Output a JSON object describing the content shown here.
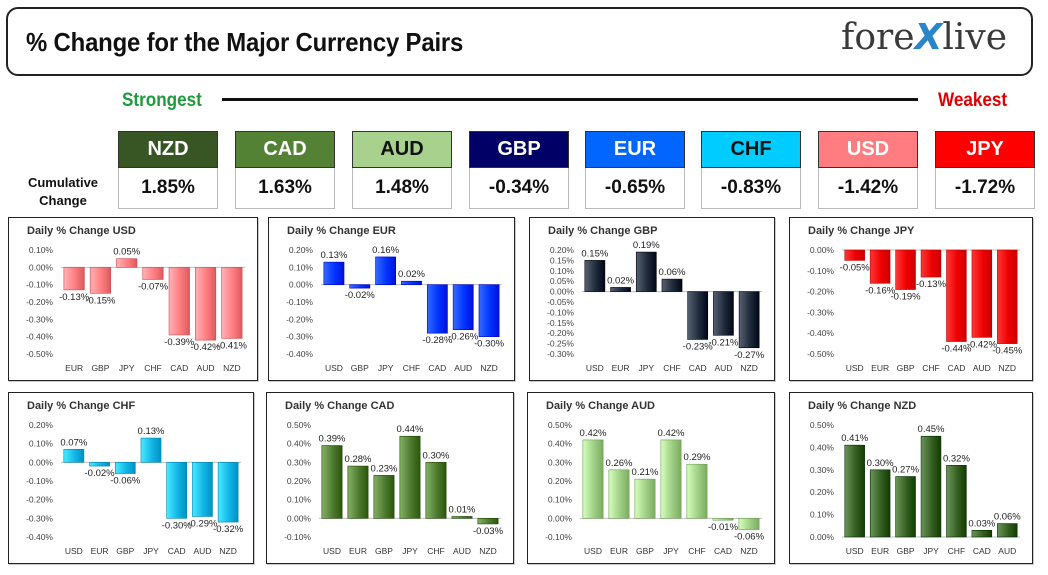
{
  "header": {
    "title": "% Change for the Major Currency Pairs",
    "logo_left": "fore",
    "logo_x": "X",
    "logo_right": "live"
  },
  "ranking": {
    "strongest_label": "Strongest",
    "weakest_label": "Weakest",
    "cumulative_label_line1": "Cumulative",
    "cumulative_label_line2": "Change",
    "currencies": [
      {
        "name": "NZD",
        "value": "1.85%",
        "bg": "#375623",
        "fg": "#ffffff"
      },
      {
        "name": "CAD",
        "value": "1.63%",
        "bg": "#548235",
        "fg": "#ffffff"
      },
      {
        "name": "AUD",
        "value": "1.48%",
        "bg": "#a9d18e",
        "fg": "#111111"
      },
      {
        "name": "GBP",
        "value": "-0.34%",
        "bg": "#000066",
        "fg": "#ffffff"
      },
      {
        "name": "EUR",
        "value": "-0.65%",
        "bg": "#0066ff",
        "fg": "#ffffff"
      },
      {
        "name": "CHF",
        "value": "-0.83%",
        "bg": "#00ccff",
        "fg": "#111111"
      },
      {
        "name": "USD",
        "value": "-1.42%",
        "bg": "#ff7c80",
        "fg": "#ffffff"
      },
      {
        "name": "JPY",
        "value": "-1.72%",
        "bg": "#ff0000",
        "fg": "#ffffff"
      }
    ]
  },
  "chart_data": [
    {
      "type": "bar",
      "title": "Daily % Change USD",
      "categories": [
        "EUR",
        "GBP",
        "JPY",
        "CHF",
        "CAD",
        "AUD",
        "NZD"
      ],
      "values": [
        -0.13,
        -0.15,
        0.05,
        -0.07,
        -0.39,
        -0.42,
        -0.41
      ],
      "value_labels": [
        "-0.13%",
        "-0.15%",
        "0.05%",
        "-0.07%",
        "-0.39%",
        "-0.42%",
        "-0.41%"
      ],
      "ylim": [
        -0.5,
        0.1
      ],
      "yticks": [
        0.1,
        0.0,
        -0.1,
        -0.2,
        -0.3,
        -0.4,
        -0.5
      ],
      "ytick_labels": [
        "0.10%",
        "0.00%",
        "-0.10%",
        "-0.20%",
        "-0.30%",
        "-0.40%",
        "-0.50%"
      ],
      "color": "#ff7c80"
    },
    {
      "type": "bar",
      "title": "Daily % Change EUR",
      "categories": [
        "USD",
        "GBP",
        "JPY",
        "CHF",
        "CAD",
        "AUD",
        "NZD"
      ],
      "values": [
        0.13,
        -0.02,
        0.16,
        0.02,
        -0.28,
        -0.26,
        -0.3
      ],
      "value_labels": [
        "0.13%",
        "-0.02%",
        "0.16%",
        "0.02%",
        "-0.28%",
        "-0.26%",
        "-0.30%"
      ],
      "ylim": [
        -0.4,
        0.2
      ],
      "yticks": [
        0.2,
        0.1,
        0.0,
        -0.1,
        -0.2,
        -0.3,
        -0.4
      ],
      "ytick_labels": [
        "0.20%",
        "0.10%",
        "0.00%",
        "-0.10%",
        "-0.20%",
        "-0.30%",
        "-0.40%"
      ],
      "color": "#0033ff"
    },
    {
      "type": "bar",
      "title": "Daily % Change GBP",
      "categories": [
        "USD",
        "EUR",
        "JPY",
        "CHF",
        "CAD",
        "AUD",
        "NZD"
      ],
      "values": [
        0.15,
        0.02,
        0.19,
        0.06,
        -0.23,
        -0.21,
        -0.27
      ],
      "value_labels": [
        "0.15%",
        "0.02%",
        "0.19%",
        "0.06%",
        "-0.23%",
        "-0.21%",
        "-0.27%"
      ],
      "ylim": [
        -0.3,
        0.2
      ],
      "yticks": [
        0.2,
        0.15,
        0.1,
        0.05,
        0.0,
        -0.05,
        -0.1,
        -0.15,
        -0.2,
        -0.25,
        -0.3
      ],
      "ytick_labels": [
        "0.20%",
        "0.15%",
        "0.10%",
        "0.05%",
        "0.00%",
        "-0.05%",
        "-0.10%",
        "-0.15%",
        "-0.20%",
        "-0.25%",
        "-0.30%"
      ],
      "color": "#1f2a3a"
    },
    {
      "type": "bar",
      "title": "Daily % Change JPY",
      "categories": [
        "USD",
        "EUR",
        "GBP",
        "CHF",
        "CAD",
        "AUD",
        "NZD"
      ],
      "values": [
        -0.05,
        -0.16,
        -0.19,
        -0.13,
        -0.44,
        -0.42,
        -0.45
      ],
      "value_labels": [
        "-0.05%",
        "-0.16%",
        "-0.19%",
        "-0.13%",
        "-0.44%",
        "-0.42%",
        "-0.45%"
      ],
      "ylim": [
        -0.5,
        0.0
      ],
      "yticks": [
        0.0,
        -0.1,
        -0.2,
        -0.3,
        -0.4,
        -0.5
      ],
      "ytick_labels": [
        "0.00%",
        "-0.10%",
        "-0.20%",
        "-0.30%",
        "-0.40%",
        "-0.50%"
      ],
      "color": "#ee0000"
    },
    {
      "type": "bar",
      "title": "Daily % Change CHF",
      "categories": [
        "USD",
        "EUR",
        "GBP",
        "JPY",
        "CAD",
        "AUD",
        "NZD"
      ],
      "values": [
        0.07,
        -0.02,
        -0.06,
        0.13,
        -0.3,
        -0.29,
        -0.32
      ],
      "value_labels": [
        "0.07%",
        "-0.02%",
        "-0.06%",
        "0.13%",
        "-0.30%",
        "-0.29%",
        "-0.32%"
      ],
      "ylim": [
        -0.4,
        0.2
      ],
      "yticks": [
        0.2,
        0.1,
        0.0,
        -0.1,
        -0.2,
        -0.3,
        -0.4
      ],
      "ytick_labels": [
        "0.20%",
        "0.10%",
        "0.00%",
        "-0.10%",
        "-0.20%",
        "-0.30%",
        "-0.40%"
      ],
      "color": "#11b5e6"
    },
    {
      "type": "bar",
      "title": "Daily % Change CAD",
      "categories": [
        "USD",
        "EUR",
        "GBP",
        "JPY",
        "CHF",
        "AUD",
        "NZD"
      ],
      "values": [
        0.39,
        0.28,
        0.23,
        0.44,
        0.3,
        0.01,
        -0.03
      ],
      "value_labels": [
        "0.39%",
        "0.28%",
        "0.23%",
        "0.44%",
        "0.30%",
        "0.01%",
        "-0.03%"
      ],
      "ylim": [
        -0.1,
        0.5
      ],
      "yticks": [
        0.5,
        0.4,
        0.3,
        0.2,
        0.1,
        0.0,
        -0.1
      ],
      "ytick_labels": [
        "0.50%",
        "0.40%",
        "0.30%",
        "0.20%",
        "0.10%",
        "0.00%",
        "-0.10%"
      ],
      "color": "#4e7a2f"
    },
    {
      "type": "bar",
      "title": "Daily % Change AUD",
      "categories": [
        "USD",
        "EUR",
        "GBP",
        "JPY",
        "CHF",
        "CAD",
        "NZD"
      ],
      "values": [
        0.42,
        0.26,
        0.21,
        0.42,
        0.29,
        -0.01,
        -0.06
      ],
      "value_labels": [
        "0.42%",
        "0.26%",
        "0.21%",
        "0.42%",
        "0.29%",
        "-0.01%",
        "-0.06%"
      ],
      "ylim": [
        -0.1,
        0.5
      ],
      "yticks": [
        0.5,
        0.4,
        0.3,
        0.2,
        0.1,
        0.0,
        -0.1
      ],
      "ytick_labels": [
        "0.50%",
        "0.40%",
        "0.30%",
        "0.20%",
        "0.10%",
        "0.00%",
        "-0.10%"
      ],
      "color": "#9fcf85"
    },
    {
      "type": "bar",
      "title": "Daily % Change NZD",
      "categories": [
        "USD",
        "EUR",
        "GBP",
        "JPY",
        "CHF",
        "CAD",
        "AUD"
      ],
      "values": [
        0.41,
        0.3,
        0.27,
        0.45,
        0.32,
        0.03,
        0.06
      ],
      "value_labels": [
        "0.41%",
        "0.30%",
        "0.27%",
        "0.45%",
        "0.32%",
        "0.03%",
        "0.06%"
      ],
      "ylim": [
        0.0,
        0.5
      ],
      "yticks": [
        0.5,
        0.4,
        0.3,
        0.2,
        0.1,
        0.0
      ],
      "ytick_labels": [
        "0.50%",
        "0.40%",
        "0.30%",
        "0.20%",
        "0.10%",
        "0.00%"
      ],
      "color": "#355f22"
    }
  ]
}
